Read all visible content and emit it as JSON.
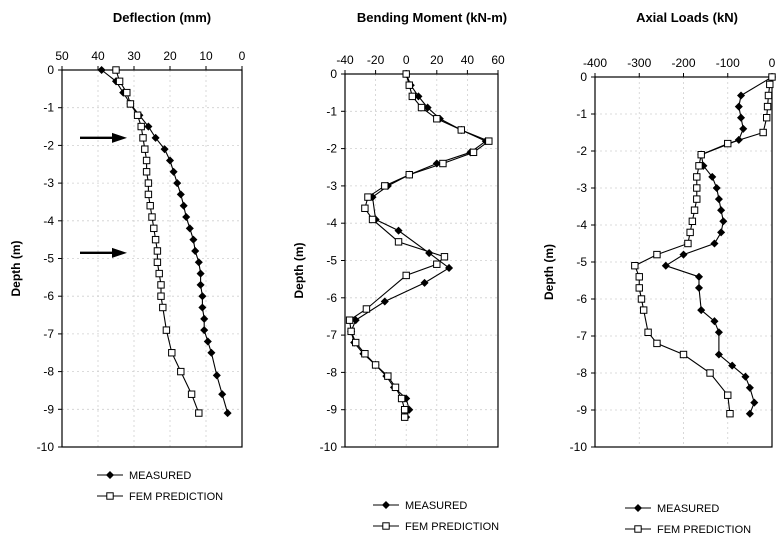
{
  "chart_data": [
    {
      "type": "line",
      "title": "Deflection (mm)",
      "ylabel": "Depth (m)",
      "xlim": [
        50,
        0
      ],
      "ylim": [
        0,
        -10
      ],
      "xticks": [
        "50",
        "40",
        "30",
        "20",
        "10",
        "0"
      ],
      "yticks": [
        "0",
        "-1",
        "-2",
        "-3",
        "-4",
        "-5",
        "-6",
        "-7",
        "-8",
        "-9",
        "-10"
      ],
      "arrows_at_depth": [
        -1.8,
        -4.85
      ],
      "series": [
        {
          "name": "MEASURED",
          "x": [
            39,
            35,
            33,
            31,
            28.5,
            26,
            24,
            21.5,
            20,
            19,
            18,
            17,
            16.2,
            15.5,
            14.5,
            13.5,
            13,
            12,
            11.5,
            11.5,
            11,
            11,
            10.5,
            10.5,
            9.5,
            8.5,
            7,
            5.5,
            4
          ],
          "y": [
            0,
            -0.3,
            -0.6,
            -0.9,
            -1.2,
            -1.5,
            -1.8,
            -2.1,
            -2.4,
            -2.7,
            -3,
            -3.3,
            -3.6,
            -3.9,
            -4.2,
            -4.5,
            -4.8,
            -5.1,
            -5.4,
            -5.7,
            -6,
            -6.3,
            -6.6,
            -6.9,
            -7.2,
            -7.5,
            -8.1,
            -8.6,
            -9.1
          ]
        },
        {
          "name": "FEM PREDICTION",
          "x": [
            35,
            34,
            32,
            31,
            29,
            28,
            27.5,
            27,
            26.5,
            26.5,
            26,
            26,
            25.5,
            25,
            24.5,
            24,
            23.5,
            23.5,
            23,
            22.5,
            22.5,
            22,
            21,
            19.5,
            17,
            14,
            12
          ],
          "y": [
            0,
            -0.3,
            -0.6,
            -0.9,
            -1.2,
            -1.5,
            -1.8,
            -2.1,
            -2.4,
            -2.7,
            -3,
            -3.3,
            -3.6,
            -3.9,
            -4.2,
            -4.5,
            -4.8,
            -5.1,
            -5.4,
            -5.7,
            -6,
            -6.3,
            -6.9,
            -7.5,
            -8,
            -8.6,
            -9.1
          ]
        }
      ]
    },
    {
      "type": "line",
      "title": "Bending Moment (kN-m)",
      "ylabel": "Depth (m)",
      "xlim": [
        -40,
        60
      ],
      "ylim": [
        0,
        -10
      ],
      "xticks": [
        "-40",
        "-20",
        "0",
        "20",
        "40",
        "60"
      ],
      "yticks": [
        "0",
        "-1",
        "-2",
        "-3",
        "-4",
        "-5",
        "-6",
        "-7",
        "-8",
        "-9",
        "-10"
      ],
      "series": [
        {
          "name": "MEASURED",
          "x": [
            0,
            3,
            8,
            14,
            22,
            36,
            52,
            42,
            20,
            2,
            -12,
            -22,
            -20,
            -5,
            15,
            28,
            12,
            -14,
            -33,
            -36,
            -34,
            -28,
            -20,
            -13,
            -8,
            0,
            2,
            0
          ],
          "y": [
            0,
            -0.3,
            -0.6,
            -0.9,
            -1.2,
            -1.5,
            -1.8,
            -2.1,
            -2.4,
            -2.7,
            -3,
            -3.3,
            -3.9,
            -4.2,
            -4.8,
            -5.2,
            -5.6,
            -6.1,
            -6.6,
            -6.9,
            -7.2,
            -7.5,
            -7.8,
            -8.1,
            -8.4,
            -8.7,
            -9,
            -9.2
          ]
        },
        {
          "name": "FEM PREDICTION",
          "x": [
            0,
            2,
            4,
            10,
            20,
            36,
            54,
            44,
            24,
            2,
            -14,
            -25,
            -27,
            -22,
            -5,
            25,
            20,
            0,
            -26,
            -37,
            -36,
            -33,
            -27,
            -20,
            -12,
            -7,
            -3,
            -1,
            -1
          ],
          "y": [
            0,
            -0.3,
            -0.6,
            -0.9,
            -1.2,
            -1.5,
            -1.8,
            -2.1,
            -2.4,
            -2.7,
            -3,
            -3.3,
            -3.6,
            -3.9,
            -4.5,
            -4.9,
            -5.1,
            -5.4,
            -6.3,
            -6.6,
            -6.9,
            -7.2,
            -7.5,
            -7.8,
            -8.1,
            -8.4,
            -8.7,
            -9,
            -9.2
          ]
        }
      ]
    },
    {
      "type": "line",
      "title": "Axial Loads (kN)",
      "ylabel": "Depth (m)",
      "xlim": [
        -400,
        0
      ],
      "ylim": [
        0,
        -10
      ],
      "xticks": [
        "-400",
        "-300",
        "-200",
        "-100",
        "0"
      ],
      "yticks": [
        "0",
        "-1",
        "-2",
        "-3",
        "-4",
        "-5",
        "-6",
        "-7",
        "-8",
        "-9",
        "-10"
      ],
      "series": [
        {
          "name": "MEASURED",
          "x": [
            0,
            -70,
            -75,
            -70,
            -65,
            -75,
            -160,
            -155,
            -135,
            -125,
            -120,
            -115,
            -110,
            -115,
            -130,
            -200,
            -240,
            -165,
            -165,
            -160,
            -130,
            -120,
            -120,
            -90,
            -60,
            -50,
            -40,
            -50
          ],
          "y": [
            0,
            -0.5,
            -0.8,
            -1.1,
            -1.4,
            -1.7,
            -2.1,
            -2.4,
            -2.7,
            -3,
            -3.3,
            -3.6,
            -3.9,
            -4.2,
            -4.5,
            -4.8,
            -5.1,
            -5.4,
            -5.7,
            -6.3,
            -6.6,
            -6.9,
            -7.5,
            -7.8,
            -8.1,
            -8.4,
            -8.8,
            -9.1
          ]
        },
        {
          "name": "FEM PREDICTION",
          "x": [
            0,
            -5,
            -8,
            -10,
            -12,
            -20,
            -100,
            -160,
            -165,
            -170,
            -170,
            -170,
            -175,
            -180,
            -185,
            -190,
            -260,
            -310,
            -300,
            -300,
            -295,
            -290,
            -280,
            -260,
            -200,
            -140,
            -100,
            -95
          ],
          "y": [
            0,
            -0.2,
            -0.5,
            -0.8,
            -1.1,
            -1.5,
            -1.8,
            -2.1,
            -2.4,
            -2.7,
            -3,
            -3.3,
            -3.6,
            -3.9,
            -4.2,
            -4.5,
            -4.8,
            -5.1,
            -5.4,
            -5.7,
            -6,
            -6.3,
            -6.9,
            -7.2,
            -7.5,
            -8,
            -8.6,
            -9.1
          ]
        }
      ]
    }
  ]
}
